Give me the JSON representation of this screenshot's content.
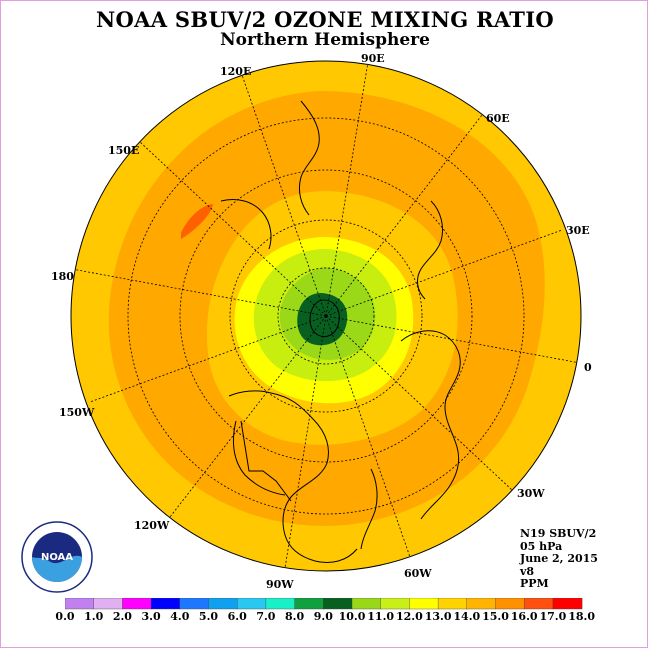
{
  "title": "NOAA SBUV/2 OZONE MIXING RATIO",
  "subtitle": "Northern Hemisphere",
  "longitude_labels": {
    "e90": "90E",
    "e60": "60E",
    "e30": "30E",
    "e120": "120E",
    "e150": "150E",
    "l180": "180",
    "l0": "0",
    "w150": "150W",
    "w120": "120W",
    "w90": "90W",
    "w60": "60W",
    "w30": "30W"
  },
  "info": {
    "instrument": "N19 SBUV/2",
    "level": "05 hPa",
    "date": "June 2, 2015",
    "version": "v8",
    "units": "PPM"
  },
  "logo": {
    "text": "NOAA",
    "ring_text": "NATIONAL OCEANIC AND ATMOSPHERIC ADMINISTRATION · U.S. DEPARTMENT OF COMMERCE"
  },
  "colorbar": {
    "labels": [
      "0.0",
      "1.0",
      "2.0",
      "3.0",
      "4.0",
      "5.0",
      "6.0",
      "7.0",
      "8.0",
      "9.0",
      "10.0",
      "11.0",
      "12.0",
      "13.0",
      "14.0",
      "15.0",
      "16.0",
      "17.0",
      "18.0"
    ],
    "colors": [
      "#c080f0",
      "#e0b0f0",
      "#ff00ff",
      "#0000ff",
      "#1e78ff",
      "#10a0f0",
      "#28c8f0",
      "#18f0c8",
      "#10a040",
      "#086020",
      "#98d818",
      "#c8f018",
      "#ffff00",
      "#ffd200",
      "#ffb400",
      "#ff9000",
      "#ff5010",
      "#ff0000",
      "#a06040"
    ]
  },
  "palette": {
    "ring_outer": "#ffc800",
    "orange_band": "#ffa800",
    "hot_spot": "#ff6000",
    "inner_yellow": "#ffff00",
    "yellow_green": "#c8ee10",
    "green": "#9ad818",
    "dark_green": "#086020"
  }
}
